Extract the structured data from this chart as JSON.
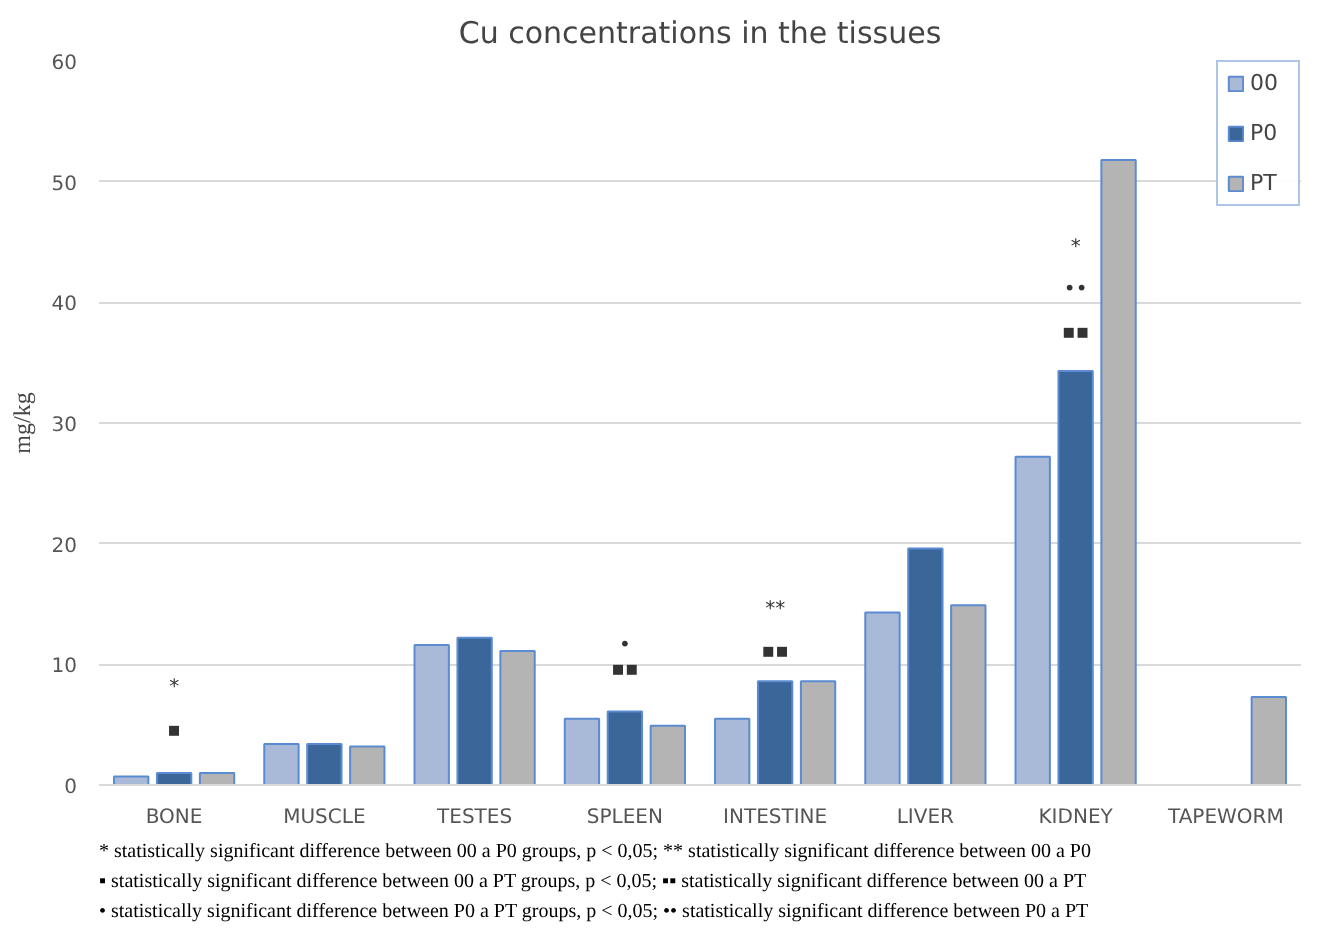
{
  "chart_data": {
    "type": "bar",
    "title": "Cu concentrations in the tissues",
    "ylabel": "mg/kg",
    "categories": [
      "BONE",
      "MUSCLE",
      "TESTES",
      "SPLEEN",
      "INTESTINE",
      "LIVER",
      "KIDNEY",
      "TAPEWORM"
    ],
    "series": [
      {
        "name": "00",
        "color": "#a9b9d8",
        "values": [
          0.7,
          3.4,
          11.6,
          5.5,
          5.5,
          14.3,
          27.2,
          null
        ]
      },
      {
        "name": "P0",
        "color": "#3b6699",
        "values": [
          1.0,
          3.4,
          12.2,
          6.1,
          8.6,
          19.6,
          34.3,
          null
        ]
      },
      {
        "name": "PT",
        "color": "#b4b4b4",
        "values": [
          1.0,
          3.2,
          11.1,
          4.9,
          8.6,
          14.9,
          51.8,
          7.3
        ]
      }
    ],
    "ylim": [
      0,
      60
    ],
    "yticks": [
      0,
      10,
      20,
      30,
      40,
      50,
      60
    ],
    "grid": "y",
    "legend": "top right",
    "annotations": [
      "▪",
      "*",
      "▪▪",
      "•",
      "▪▪",
      "**",
      "▪▪",
      "••",
      "*",
      "* statistically significant difference between 00 a P0 groups, p < 0,05; ** statistically significant difference between 00 a P0",
      "▪ statistically significant difference between 00 a PT groups, p < 0,05; ▪▪ statistically significant difference between 00 a PT",
      "• statistically significant difference between P0 a PT groups, p < 0,05; •• statistically significant difference between P0 a PT"
    ]
  }
}
